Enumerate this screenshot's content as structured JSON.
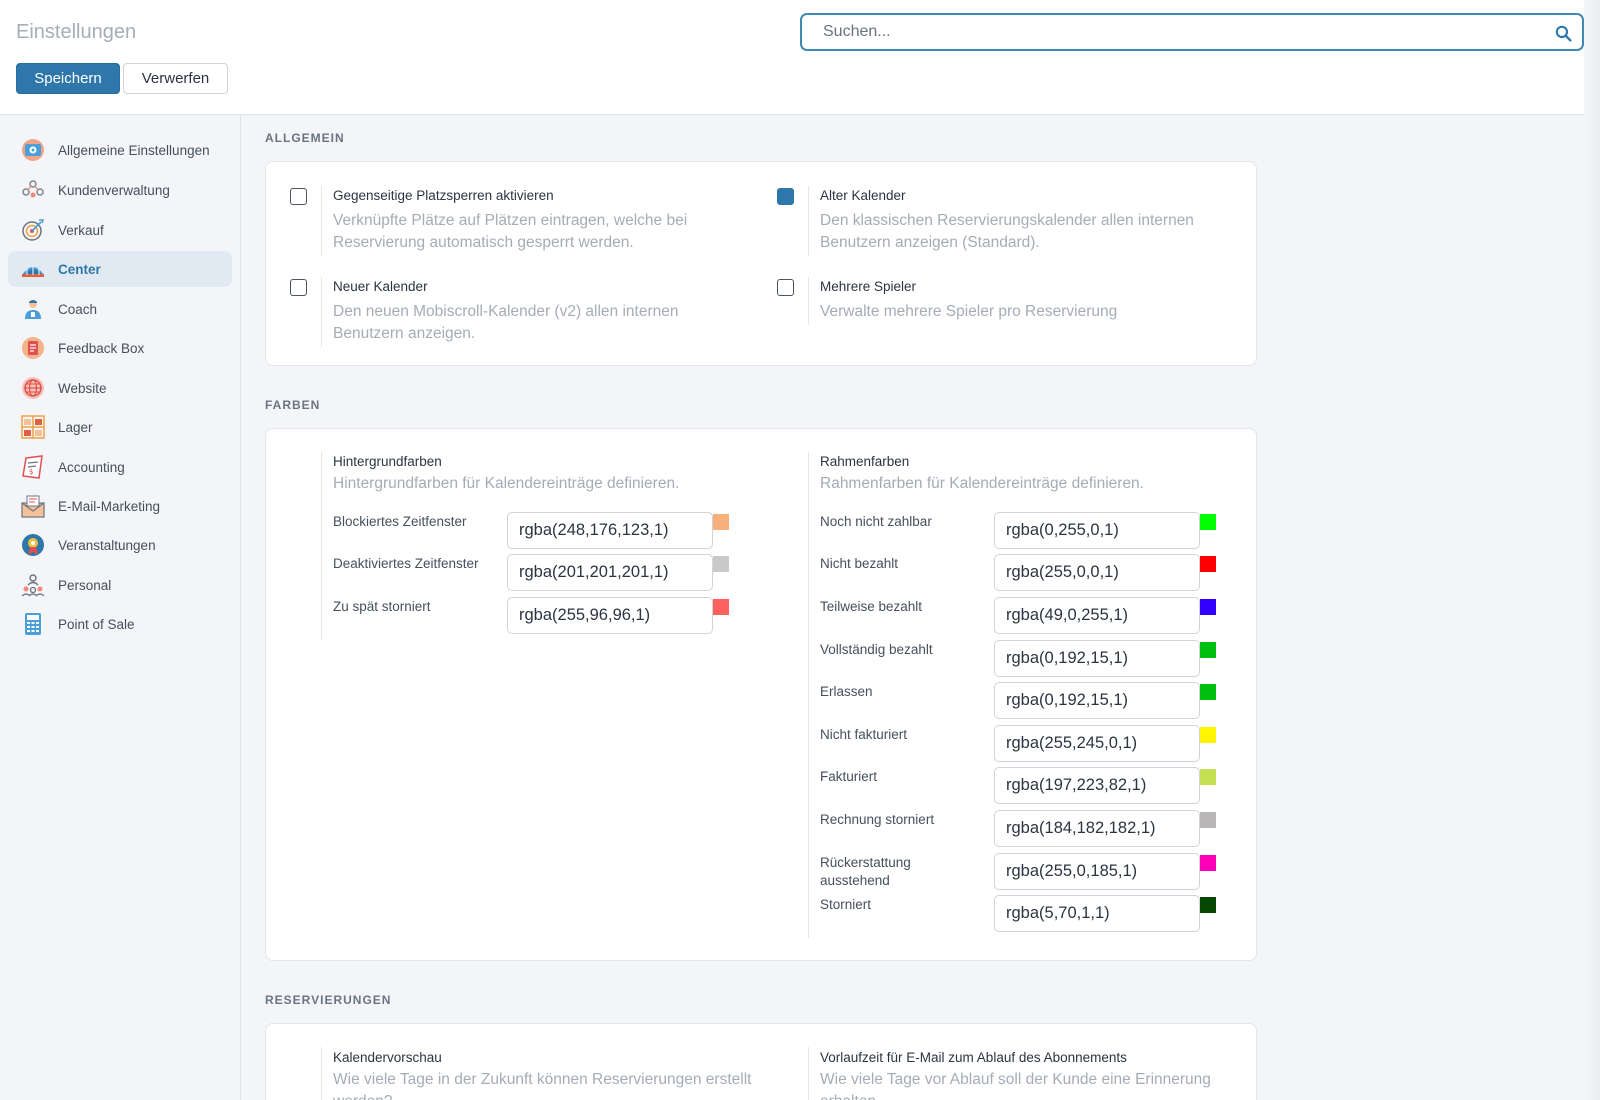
{
  "header": {
    "title": "Einstellungen",
    "search_placeholder": "Suchen...",
    "save_label": "Speichern",
    "discard_label": "Verwerfen"
  },
  "sidebar": {
    "items": [
      {
        "label": "Allgemeine Einstellungen",
        "icon": "settings-icon"
      },
      {
        "label": "Kundenverwaltung",
        "icon": "customers-icon"
      },
      {
        "label": "Verkauf",
        "icon": "target-icon"
      },
      {
        "label": "Center",
        "icon": "stadium-icon",
        "active": true
      },
      {
        "label": "Coach",
        "icon": "coach-icon"
      },
      {
        "label": "Feedback Box",
        "icon": "feedback-icon"
      },
      {
        "label": "Website",
        "icon": "globe-icon"
      },
      {
        "label": "Lager",
        "icon": "warehouse-icon"
      },
      {
        "label": "Accounting",
        "icon": "invoice-icon"
      },
      {
        "label": "E-Mail-Marketing",
        "icon": "mail-icon"
      },
      {
        "label": "Veranstaltungen",
        "icon": "event-icon"
      },
      {
        "label": "Personal",
        "icon": "staff-icon"
      },
      {
        "label": "Point of Sale",
        "icon": "pos-icon"
      }
    ]
  },
  "allgemein": {
    "title": "ALLGEMEIN",
    "options": [
      {
        "title": "Gegenseitige Platzsperren aktivieren",
        "desc": "Verknüpfte Plätze auf Plätzen eintragen, welche bei Reservierung automatisch gesperrt werden.",
        "checked": false
      },
      {
        "title": "Alter Kalender",
        "desc": "Den klassischen Reservierungskalender allen internen Benutzern anzeigen (Standard).",
        "checked": true
      },
      {
        "title": "Neuer Kalender",
        "desc": "Den neuen Mobiscroll-Kalender (v2) allen internen Benutzern anzeigen.",
        "checked": false
      },
      {
        "title": "Mehrere Spieler",
        "desc": "Verwalte mehrere Spieler pro Reservierung",
        "checked": false
      }
    ]
  },
  "farben": {
    "title": "FARBEN",
    "background": {
      "title": "Hintergrundfarben",
      "desc": "Hintergrundfarben für Kalendereinträge definieren.",
      "rows": [
        {
          "label": "Blockiertes Zeitfenster",
          "value": "rgba(248,176,123,1)",
          "color": "#f8b07b"
        },
        {
          "label": "Deaktiviertes Zeitfenster",
          "value": "rgba(201,201,201,1)",
          "color": "#c9c9c9"
        },
        {
          "label": "Zu spät storniert",
          "value": "rgba(255,96,96,1)",
          "color": "#ff6060"
        }
      ]
    },
    "border": {
      "title": "Rahmenfarben",
      "desc": "Rahmenfarben für Kalendereinträge definieren.",
      "rows": [
        {
          "label": "Noch nicht zahlbar",
          "value": "rgba(0,255,0,1)",
          "color": "#00ff00"
        },
        {
          "label": "Nicht bezahlt",
          "value": "rgba(255,0,0,1)",
          "color": "#ff0000"
        },
        {
          "label": "Teilweise bezahlt",
          "value": "rgba(49,0,255,1)",
          "color": "#3100ff"
        },
        {
          "label": "Vollständig bezahlt",
          "value": "rgba(0,192,15,1)",
          "color": "#00c00f"
        },
        {
          "label": "Erlassen",
          "value": "rgba(0,192,15,1)",
          "color": "#00c00f"
        },
        {
          "label": "Nicht fakturiert",
          "value": "rgba(255,245,0,1)",
          "color": "#fff500"
        },
        {
          "label": "Fakturiert",
          "value": "rgba(197,223,82,1)",
          "color": "#c5df52"
        },
        {
          "label": "Rechnung storniert",
          "value": "rgba(184,182,182,1)",
          "color": "#b8b6b6"
        },
        {
          "label": "Rückerstattung ausstehend",
          "value": "rgba(255,0,185,1)",
          "color": "#ff00b9"
        },
        {
          "label": "Storniert",
          "value": "rgba(5,70,1,1)",
          "color": "#054601"
        }
      ]
    }
  },
  "reservierungen": {
    "title": "RESERVIERUNGEN",
    "left": {
      "title": "Kalendervorschau",
      "desc": "Wie viele Tage in der Zukunft können Reservierungen erstellt werden?"
    },
    "right": {
      "title": "Vorlaufzeit für E-Mail zum Ablauf des Abonnements",
      "desc": "Wie viele Tage vor Ablauf soll der Kunde eine Erinnerung erhalten"
    }
  }
}
